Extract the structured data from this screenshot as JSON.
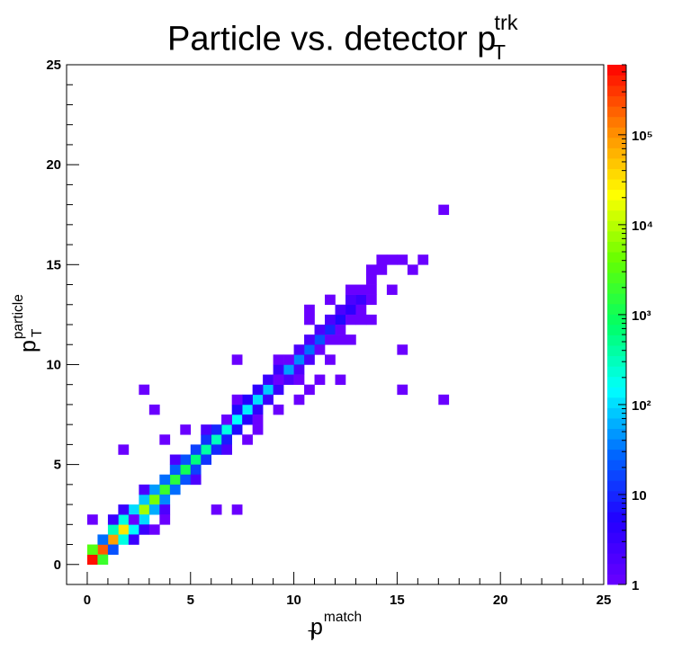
{
  "title": {
    "main": "Particle vs. detector p",
    "sup": "trk",
    "sub": "T"
  },
  "chart_data": {
    "type": "heatmap",
    "xlabel": {
      "main": "p",
      "sup": "match",
      "sub": "T"
    },
    "ylabel": {
      "main": "p",
      "sup": "particle",
      "sub": "T"
    },
    "xlim": [
      -1,
      25
    ],
    "ylim": [
      -1,
      25
    ],
    "bin_width": 0.5,
    "x_ticks": [
      "0",
      "5",
      "10",
      "15",
      "20",
      "25"
    ],
    "y_ticks": [
      "0",
      "5",
      "10",
      "15",
      "20",
      "25"
    ],
    "z_scale": "log",
    "z_range": [
      1,
      600000
    ],
    "z_ticks": [
      {
        "value": 1,
        "label": "1"
      },
      {
        "value": 10,
        "label": "10"
      },
      {
        "value": 100,
        "label": "10²"
      },
      {
        "value": 1000,
        "label": "10³"
      },
      {
        "value": 10000,
        "label": "10⁴"
      },
      {
        "value": 100000,
        "label": "10⁵"
      }
    ],
    "palette": [
      "#6a00ff",
      "#2200ff",
      "#0066ff",
      "#00ffff",
      "#00ff66",
      "#66ff00",
      "#ffff00",
      "#ff8800",
      "#ff0000"
    ],
    "bins": [
      [
        0,
        0,
        500000
      ],
      [
        0.5,
        0.5,
        200000
      ],
      [
        0,
        0.5,
        3000
      ],
      [
        0.5,
        0,
        2000
      ],
      [
        1,
        1,
        80000
      ],
      [
        1.5,
        1.5,
        30000
      ],
      [
        2,
        2,
        15000
      ],
      [
        2.5,
        2.5,
        8000
      ],
      [
        3,
        3,
        5000
      ],
      [
        3.5,
        3.5,
        2000
      ],
      [
        4,
        4,
        1500
      ],
      [
        4.5,
        4.5,
        1000
      ],
      [
        5,
        5,
        600
      ],
      [
        5.5,
        5.5,
        400
      ],
      [
        6,
        6,
        300
      ],
      [
        6.5,
        6.5,
        200
      ],
      [
        7,
        7,
        150
      ],
      [
        7.5,
        7.5,
        120
      ],
      [
        8,
        8,
        100
      ],
      [
        8.5,
        8.5,
        80
      ],
      [
        9,
        9,
        60
      ],
      [
        9.5,
        9.5,
        50
      ],
      [
        10,
        10,
        40
      ],
      [
        10.5,
        10.5,
        30
      ],
      [
        11,
        11,
        20
      ],
      [
        11.5,
        11.5,
        10
      ],
      [
        12,
        12,
        6
      ],
      [
        12.5,
        12.5,
        4
      ],
      [
        13,
        13,
        3
      ],
      [
        1,
        1.5,
        300
      ],
      [
        1.5,
        1,
        200
      ],
      [
        1.5,
        2,
        200
      ],
      [
        2,
        1.5,
        150
      ],
      [
        2,
        2.5,
        100
      ],
      [
        2.5,
        2,
        100
      ],
      [
        2.5,
        3,
        80
      ],
      [
        3,
        2.5,
        60
      ],
      [
        3,
        3.5,
        50
      ],
      [
        3.5,
        3,
        40
      ],
      [
        3.5,
        4,
        30
      ],
      [
        4,
        3.5,
        30
      ],
      [
        4,
        4.5,
        25
      ],
      [
        4.5,
        4,
        20
      ],
      [
        4.5,
        5,
        20
      ],
      [
        5,
        4.5,
        15
      ],
      [
        5,
        5.5,
        15
      ],
      [
        5.5,
        5,
        12
      ],
      [
        5.5,
        6,
        12
      ],
      [
        6,
        5.5,
        10
      ],
      [
        6,
        6.5,
        10
      ],
      [
        6.5,
        6,
        8
      ],
      [
        6.5,
        7,
        8
      ],
      [
        7,
        6.5,
        6
      ],
      [
        7,
        7.5,
        6
      ],
      [
        7.5,
        7,
        5
      ],
      [
        7.5,
        8,
        5
      ],
      [
        8,
        7.5,
        4
      ],
      [
        8,
        8.5,
        4
      ],
      [
        8.5,
        8,
        3
      ],
      [
        8.5,
        9,
        3
      ],
      [
        9,
        8.5,
        3
      ],
      [
        9,
        9.5,
        3
      ],
      [
        9.5,
        9,
        2
      ],
      [
        10,
        9.5,
        2
      ],
      [
        10,
        10.5,
        2
      ],
      [
        10.5,
        10,
        2
      ],
      [
        10.5,
        11,
        2
      ],
      [
        11,
        11.5,
        2
      ],
      [
        11.5,
        12,
        2
      ],
      [
        12,
        12.5,
        2
      ],
      [
        12.5,
        13,
        2
      ],
      [
        13,
        13.5,
        1
      ],
      [
        0.5,
        1,
        30
      ],
      [
        1,
        0.5,
        20
      ],
      [
        1,
        2,
        3
      ],
      [
        2,
        1,
        3
      ],
      [
        1.5,
        2.5,
        3
      ],
      [
        2.5,
        1.5,
        3
      ],
      [
        3.5,
        2.5,
        2
      ],
      [
        2.5,
        3.5,
        2
      ],
      [
        4,
        5,
        2
      ],
      [
        5,
        4,
        2
      ],
      [
        5.5,
        6.5,
        2
      ],
      [
        6.5,
        5.5,
        2
      ],
      [
        7,
        8,
        1
      ],
      [
        8,
        7,
        1
      ],
      [
        9,
        10,
        1
      ],
      [
        10,
        9,
        1
      ],
      [
        11,
        10.5,
        1
      ],
      [
        11.5,
        11,
        1
      ],
      [
        12,
        11.5,
        1
      ],
      [
        12.5,
        12,
        1
      ],
      [
        13,
        12.5,
        1
      ],
      [
        13.5,
        13,
        1
      ],
      [
        13.5,
        12,
        1
      ],
      [
        13,
        12,
        1
      ],
      [
        0,
        2,
        1
      ],
      [
        2,
        2,
        1
      ],
      [
        3,
        1.5,
        1
      ],
      [
        3.5,
        2,
        1
      ],
      [
        6,
        2.5,
        1
      ],
      [
        7,
        2.5,
        1
      ],
      [
        1.5,
        5.5,
        1
      ],
      [
        3.5,
        6,
        1
      ],
      [
        4.5,
        6.5,
        1
      ],
      [
        3,
        7.5,
        1
      ],
      [
        2.5,
        8.5,
        1
      ],
      [
        6.5,
        7,
        1
      ],
      [
        7.5,
        6,
        1
      ],
      [
        8,
        6.5,
        1
      ],
      [
        9,
        7.5,
        1
      ],
      [
        10,
        8,
        1
      ],
      [
        10.5,
        8.5,
        1
      ],
      [
        11,
        9,
        1
      ],
      [
        15,
        8.5,
        1
      ],
      [
        17,
        8,
        1
      ],
      [
        7,
        10,
        1
      ],
      [
        9.5,
        10,
        1
      ],
      [
        11.5,
        10,
        1
      ],
      [
        12,
        9,
        1
      ],
      [
        15,
        10.5,
        1
      ],
      [
        10.5,
        12.5,
        1
      ],
      [
        11.5,
        13,
        1
      ],
      [
        12.5,
        13.5,
        1
      ],
      [
        13.5,
        13.5,
        1
      ],
      [
        14.5,
        13.5,
        1
      ],
      [
        13.5,
        14,
        1
      ],
      [
        14,
        14.5,
        1
      ],
      [
        14.5,
        15,
        1
      ],
      [
        15,
        15,
        1
      ],
      [
        16,
        15,
        1
      ],
      [
        15.5,
        14.5,
        1
      ],
      [
        14,
        15,
        1
      ],
      [
        13.5,
        14.5,
        1
      ],
      [
        17,
        17.5,
        1
      ],
      [
        12,
        11,
        1
      ],
      [
        12.5,
        11,
        1
      ],
      [
        10.5,
        12,
        1
      ],
      [
        9,
        9,
        1
      ]
    ]
  }
}
